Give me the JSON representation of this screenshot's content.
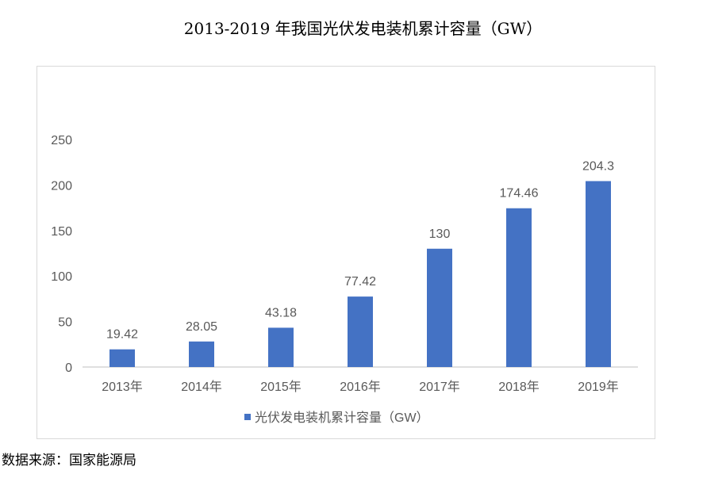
{
  "title": "2013-2019 年我国光伏发电装机累计容量（GW）",
  "source": "数据来源：国家能源局",
  "chart_data": {
    "type": "bar",
    "categories": [
      "2013年",
      "2014年",
      "2015年",
      "2016年",
      "2017年",
      "2018年",
      "2019年"
    ],
    "series": [
      {
        "name": "光伏发电装机累计容量（GW）",
        "values": [
          19.42,
          28.05,
          43.18,
          77.42,
          130,
          174.46,
          204.3
        ],
        "color": "#4472c4"
      }
    ],
    "data_labels": [
      "19.42",
      "28.05",
      "43.18",
      "77.42",
      "130",
      "174.46",
      "204.3"
    ],
    "y_ticks": [
      "0",
      "50",
      "100",
      "150",
      "200",
      "250"
    ],
    "ylim": [
      0,
      250
    ],
    "grid": false,
    "legend_position": "bottom",
    "colors": {
      "bar": "#4472c4",
      "axis": "#bfbfbf",
      "text": "#595959",
      "frame": "#d9d9d9"
    }
  }
}
